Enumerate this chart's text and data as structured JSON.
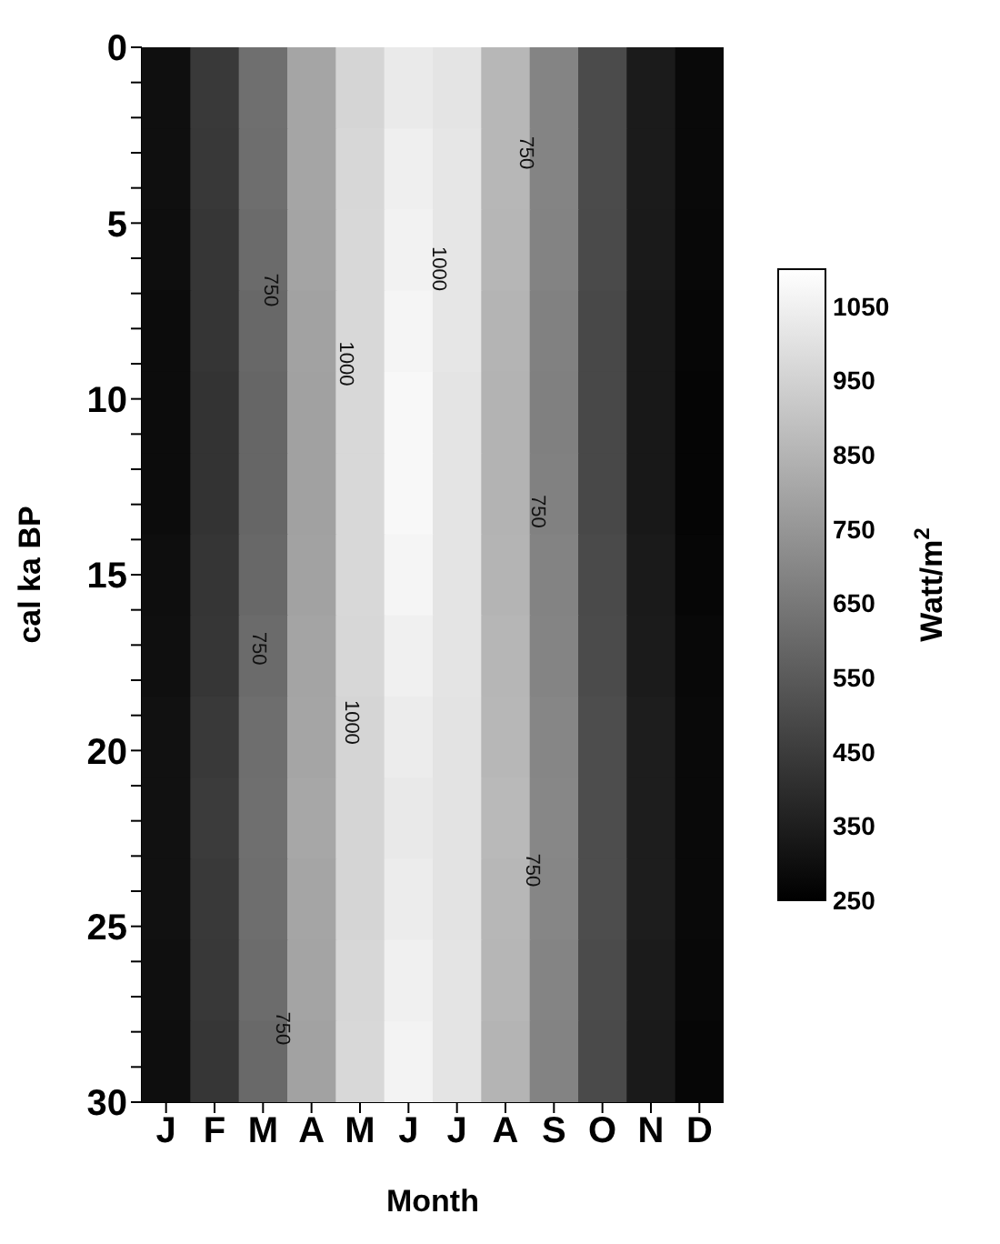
{
  "chart_data": {
    "type": "heatmap",
    "xlabel": "Month",
    "ylabel": "cal ka BP",
    "clabel": "Watt/m$^{2}$",
    "categories": [
      "J",
      "F",
      "M",
      "A",
      "M",
      "J",
      "J",
      "A",
      "S",
      "O",
      "N",
      "D"
    ],
    "ylim": [
      30,
      0
    ],
    "yticks": [
      0,
      {
        "value": 1,
        "label": null
      },
      {
        "value": 2,
        "label": null
      },
      {
        "value": 3,
        "label": null
      },
      {
        "value": 4,
        "label": null
      },
      5,
      {
        "value": 6,
        "label": null
      },
      {
        "value": 7,
        "label": null
      },
      {
        "value": 8,
        "label": null
      },
      {
        "value": 9,
        "label": null
      },
      10,
      {
        "value": 11,
        "label": null
      },
      {
        "value": 12,
        "label": null
      },
      {
        "value": 13,
        "label": null
      },
      {
        "value": 14,
        "label": null
      },
      15,
      {
        "value": 16,
        "label": null
      },
      {
        "value": 17,
        "label": null
      },
      {
        "value": 18,
        "label": null
      },
      {
        "value": 19,
        "label": null
      },
      20,
      {
        "value": 21,
        "label": null
      },
      {
        "value": 22,
        "label": null
      },
      {
        "value": 23,
        "label": null
      },
      {
        "value": 24,
        "label": null
      },
      25,
      {
        "value": 26,
        "label": null
      },
      {
        "value": 27,
        "label": null
      },
      {
        "value": 28,
        "label": null
      },
      {
        "value": 29,
        "label": null
      },
      30
    ],
    "cells": [
      [
        300,
        440,
        620,
        800,
        960,
        1030,
        1010,
        860,
        690,
        500,
        340,
        280
      ],
      [
        300,
        435,
        615,
        800,
        965,
        1045,
        1015,
        860,
        690,
        500,
        340,
        280
      ],
      [
        295,
        430,
        605,
        795,
        970,
        1055,
        1015,
        855,
        685,
        495,
        335,
        275
      ],
      [
        290,
        425,
        595,
        790,
        970,
        1065,
        1015,
        850,
        680,
        490,
        330,
        270
      ],
      [
        290,
        420,
        590,
        785,
        970,
        1075,
        1010,
        845,
        675,
        490,
        330,
        265
      ],
      [
        290,
        420,
        590,
        785,
        970,
        1075,
        1010,
        845,
        680,
        490,
        330,
        265
      ],
      [
        295,
        425,
        595,
        790,
        970,
        1065,
        1010,
        850,
        685,
        495,
        335,
        270
      ],
      [
        300,
        430,
        605,
        795,
        965,
        1050,
        1010,
        855,
        690,
        500,
        340,
        275
      ],
      [
        305,
        440,
        615,
        800,
        960,
        1035,
        1005,
        860,
        695,
        505,
        345,
        280
      ],
      [
        305,
        445,
        620,
        805,
        960,
        1025,
        1005,
        865,
        700,
        505,
        345,
        280
      ],
      [
        305,
        440,
        615,
        800,
        960,
        1035,
        1005,
        860,
        695,
        505,
        345,
        280
      ],
      [
        300,
        435,
        610,
        795,
        965,
        1050,
        1010,
        855,
        690,
        500,
        340,
        275
      ],
      [
        295,
        430,
        600,
        790,
        970,
        1060,
        1010,
        850,
        685,
        495,
        335,
        270
      ]
    ],
    "clim": [
      250,
      1100
    ],
    "cticks": [
      250,
      350,
      450,
      550,
      650,
      750,
      850,
      950,
      1050
    ],
    "annotations": [
      "750",
      "750",
      "1000",
      "1000",
      "750",
      "750",
      "1000",
      "750",
      "750"
    ]
  }
}
